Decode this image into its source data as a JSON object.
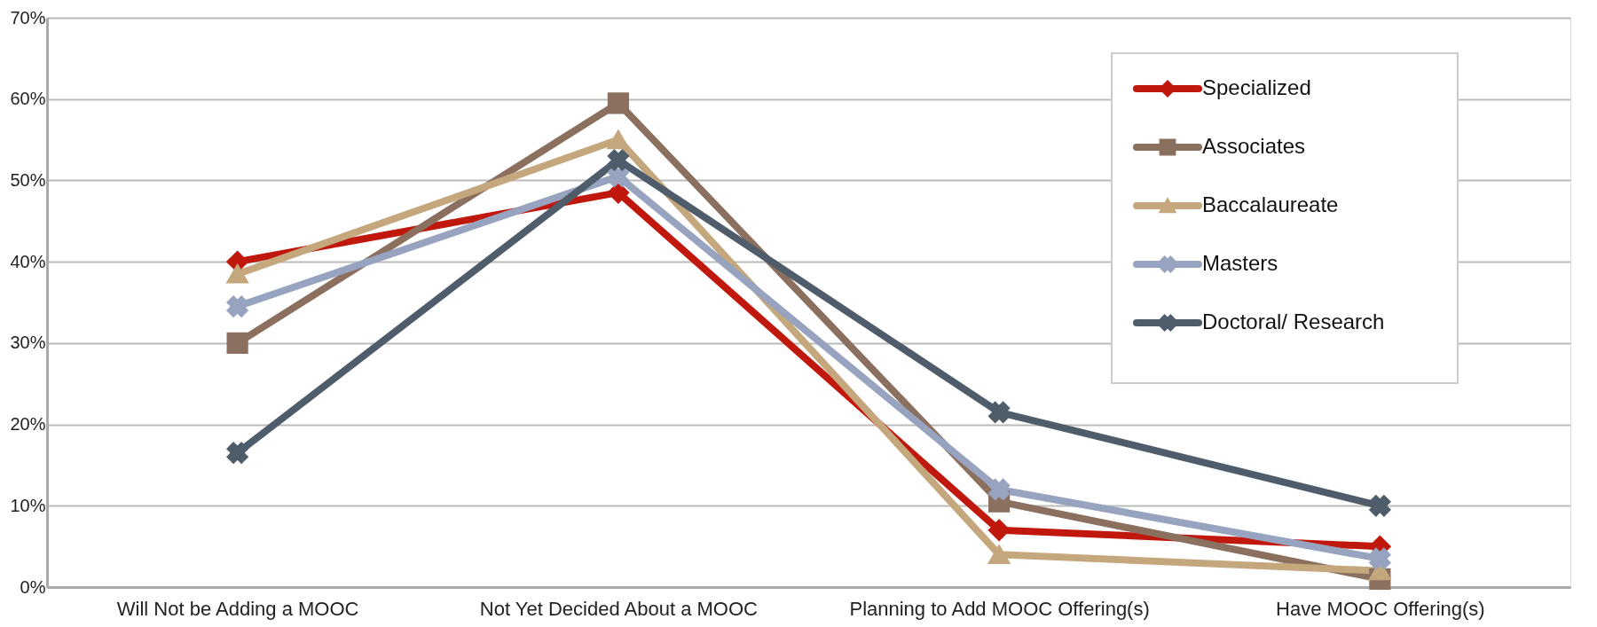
{
  "chart_data": {
    "type": "line",
    "categories": [
      "Will Not be Adding a MOOC",
      "Not Yet Decided About a MOOC",
      "Planning to Add MOOC Offering(s)",
      "Have MOOC Offering(s)"
    ],
    "series": [
      {
        "name": "Specialized",
        "color": "#c0180c",
        "marker": "diamond",
        "values": [
          40,
          48.5,
          7,
          5
        ]
      },
      {
        "name": "Associates",
        "color": "#8b6f5f",
        "marker": "square",
        "values": [
          30,
          59.5,
          10.5,
          1
        ]
      },
      {
        "name": "Baccalaureate",
        "color": "#c4a77c",
        "marker": "triangle",
        "values": [
          38.5,
          55,
          4,
          2
        ]
      },
      {
        "name": "Masters",
        "color": "#97a3bf",
        "marker": "cross",
        "values": [
          34.5,
          50.5,
          12,
          3.5
        ]
      },
      {
        "name": "Doctoral/ Research",
        "color": "#4f5d6b",
        "marker": "cross",
        "values": [
          16.5,
          52.5,
          21.5,
          10
        ]
      }
    ],
    "ylim": [
      0,
      70
    ],
    "yticks": [
      {
        "value": 0,
        "label": "0%"
      },
      {
        "value": 10,
        "label": "10%"
      },
      {
        "value": 20,
        "label": "20%"
      },
      {
        "value": 30,
        "label": "30%"
      },
      {
        "value": 40,
        "label": "40%"
      },
      {
        "value": 50,
        "label": "50%"
      },
      {
        "value": 60,
        "label": "60%"
      },
      {
        "value": 70,
        "label": "70%"
      }
    ],
    "grid": "y",
    "legend": "top right"
  }
}
